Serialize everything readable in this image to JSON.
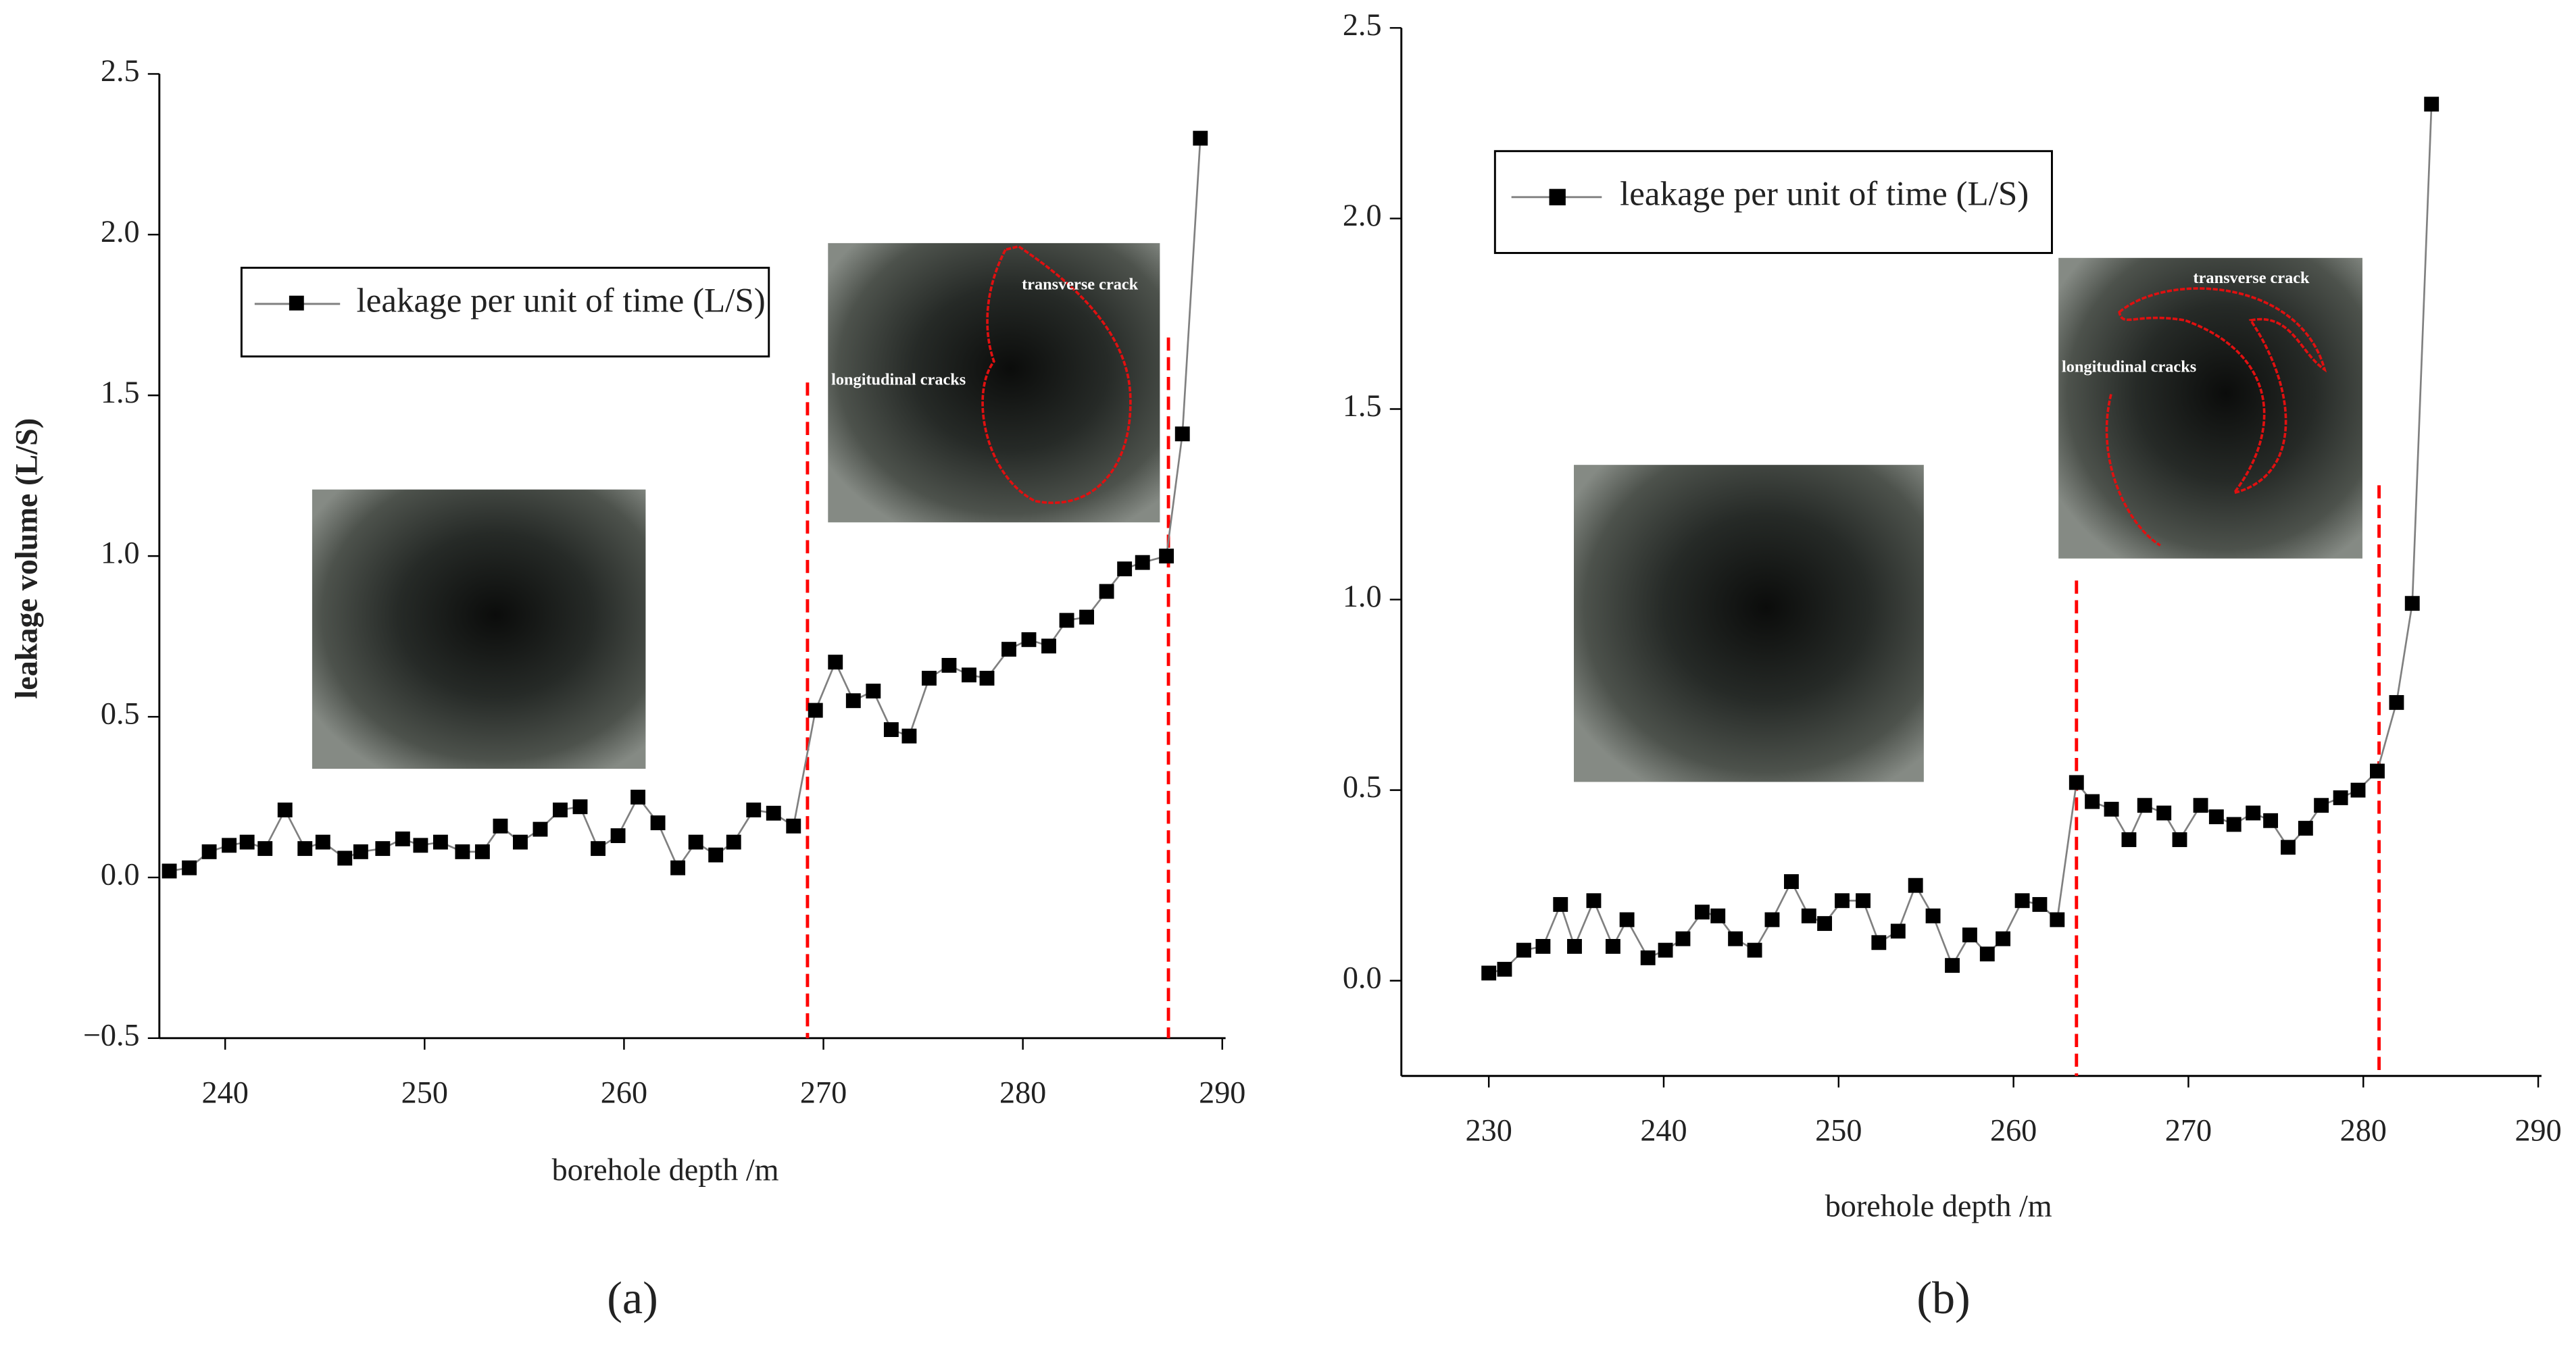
{
  "chart_data": [
    {
      "type": "line",
      "x_label": "borehole depth /m",
      "y_label": "leakage volume (L/S)",
      "caption": "(a)",
      "annotations": [
        "transverse crack",
        "longitudinal cracks"
      ],
      "x": [
        237.2,
        238.2,
        239.2,
        240.2,
        241.1,
        242.0,
        243.0,
        244.0,
        244.9,
        246.0,
        246.8,
        247.9,
        248.9,
        249.8,
        250.8,
        251.9,
        252.9,
        253.8,
        254.8,
        255.8,
        256.8,
        257.8,
        258.7,
        259.7,
        260.7,
        261.7,
        262.7,
        263.6,
        264.6,
        265.5,
        266.5,
        267.5,
        268.5,
        269.6,
        270.6,
        271.5,
        272.5,
        273.4,
        274.3,
        275.3,
        276.3,
        277.3,
        278.2,
        279.3,
        280.3,
        281.3,
        282.2,
        283.2,
        284.2,
        285.1,
        286.0,
        287.2,
        288.0,
        288.9
      ],
      "series": [
        {
          "name": "leakage per unit of time (L/S)",
          "color": "#000000",
          "line_color": "#808080",
          "values": [
            0.02,
            0.03,
            0.08,
            0.1,
            0.11,
            0.09,
            0.21,
            0.09,
            0.11,
            0.06,
            0.08,
            0.09,
            0.12,
            0.1,
            0.11,
            0.08,
            0.08,
            0.16,
            0.11,
            0.15,
            0.21,
            0.22,
            0.09,
            0.13,
            0.25,
            0.17,
            0.03,
            0.11,
            0.07,
            0.11,
            0.21,
            0.2,
            0.16,
            0.52,
            0.67,
            0.55,
            0.58,
            0.46,
            0.44,
            0.62,
            0.66,
            0.63,
            0.62,
            0.71,
            0.74,
            0.72,
            0.8,
            0.81,
            0.89,
            0.96,
            0.98,
            1.0,
            1.38,
            2.3
          ]
        }
      ],
      "reference_lines": [
        {
          "x": 269.2,
          "y_top": 1.54,
          "color": "#ff0000"
        },
        {
          "x": 287.3,
          "y_top": 1.68,
          "color": "#ff0000"
        }
      ],
      "xlim": [
        236.7,
        290
      ],
      "ylim": [
        -0.5,
        2.5
      ],
      "xticks": [
        240,
        250,
        260,
        270,
        280,
        290
      ],
      "yticks": [
        {
          "value": -0.5,
          "label": "−0.5"
        },
        {
          "value": 0,
          "label": "0.0"
        },
        0.5,
        {
          "value": 1,
          "label": "1.0"
        },
        1.5,
        {
          "value": 2,
          "label": "2.0"
        },
        2.5
      ]
    },
    {
      "type": "line",
      "x_label": "borehole depth /m",
      "caption": "(b)",
      "annotations": [
        "transverse crack",
        "longitudinal cracks"
      ],
      "x": [
        230.0,
        230.9,
        232.0,
        233.1,
        234.1,
        234.9,
        236.0,
        237.1,
        237.9,
        239.1,
        240.1,
        241.1,
        242.2,
        243.1,
        244.1,
        245.2,
        246.2,
        247.3,
        248.3,
        249.2,
        250.2,
        251.4,
        252.3,
        253.4,
        254.4,
        255.4,
        256.5,
        257.5,
        258.5,
        259.4,
        260.5,
        261.5,
        262.5,
        263.6,
        264.5,
        265.6,
        266.6,
        267.5,
        268.6,
        269.5,
        270.7,
        271.6,
        272.6,
        273.7,
        274.7,
        275.7,
        276.7,
        277.6,
        278.7,
        279.7,
        280.8,
        281.9,
        282.8,
        283.9
      ],
      "series": [
        {
          "name": "leakage per unit of time (L/S)",
          "color": "#000000",
          "line_color": "#808080",
          "values": [
            0.02,
            0.03,
            0.08,
            0.09,
            0.2,
            0.09,
            0.21,
            0.09,
            0.16,
            0.06,
            0.08,
            0.11,
            0.18,
            0.17,
            0.11,
            0.08,
            0.16,
            0.26,
            0.17,
            0.15,
            0.21,
            0.21,
            0.1,
            0.13,
            0.25,
            0.17,
            0.04,
            0.12,
            0.07,
            0.11,
            0.21,
            0.2,
            0.16,
            0.52,
            0.47,
            0.45,
            0.37,
            0.46,
            0.44,
            0.37,
            0.46,
            0.43,
            0.41,
            0.44,
            0.42,
            0.35,
            0.4,
            0.46,
            0.48,
            0.5,
            0.55,
            0.73,
            0.99,
            2.3
          ]
        }
      ],
      "reference_lines": [
        {
          "x": 263.6,
          "y_top": 1.05,
          "color": "#ff0000"
        },
        {
          "x": 280.9,
          "y_top": 1.3,
          "color": "#ff0000"
        }
      ],
      "xlim": [
        225,
        290
      ],
      "ylim": [
        -0.25,
        2.5
      ],
      "xticks": [
        230,
        240,
        250,
        260,
        270,
        280,
        290
      ],
      "yticks": [
        {
          "value": 0,
          "label": "0.0"
        },
        0.5,
        {
          "value": 1,
          "label": "1.0"
        },
        1.5,
        {
          "value": 2,
          "label": "2.0"
        },
        2.5
      ]
    }
  ]
}
